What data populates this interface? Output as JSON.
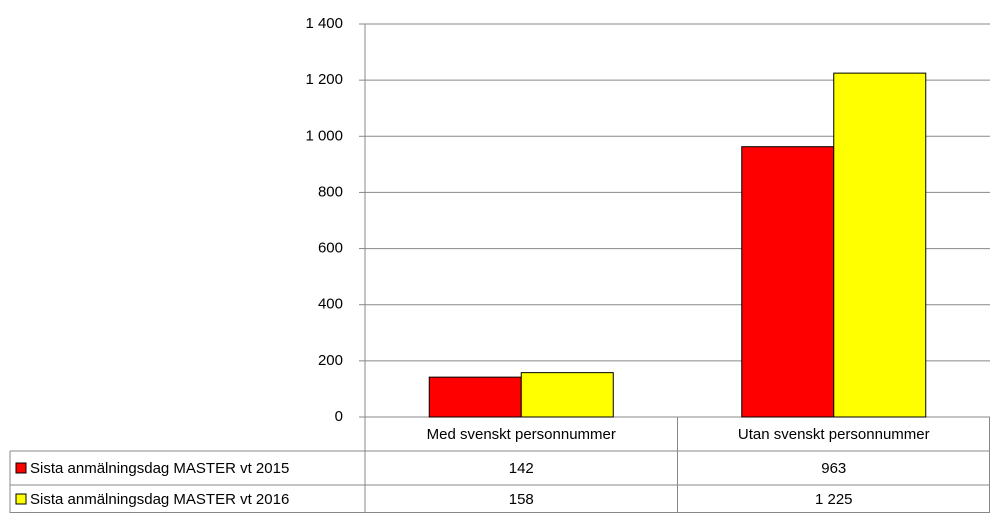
{
  "chart_data": {
    "type": "bar",
    "categories": [
      "Med svenskt personnummer",
      "Utan svenskt personnummer"
    ],
    "series": [
      {
        "name": "Sista anmälningsdag MASTER vt 2015",
        "color": "#ff0000",
        "values": [
          142,
          963
        ],
        "value_labels": [
          "142",
          "963"
        ]
      },
      {
        "name": "Sista anmälningsdag MASTER vt 2016",
        "color": "#ffff00",
        "values": [
          158,
          1225
        ],
        "value_labels": [
          "158",
          "1 225"
        ]
      }
    ],
    "ylim": [
      0,
      1400
    ],
    "yticks": [
      0,
      200,
      400,
      600,
      800,
      {
        "value": 1000,
        "label": "1 000"
      },
      {
        "value": 1200,
        "label": "1 200"
      },
      {
        "value": 1400,
        "label": "1 400"
      }
    ],
    "grid": true
  }
}
